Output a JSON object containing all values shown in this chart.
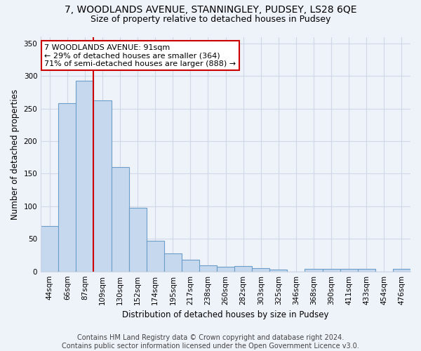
{
  "title": "7, WOODLANDS AVENUE, STANNINGLEY, PUDSEY, LS28 6QE",
  "subtitle": "Size of property relative to detached houses in Pudsey",
  "xlabel": "Distribution of detached houses by size in Pudsey",
  "ylabel": "Number of detached properties",
  "footer_line1": "Contains HM Land Registry data © Crown copyright and database right 2024.",
  "footer_line2": "Contains public sector information licensed under the Open Government Licence v3.0.",
  "annotation_line1": "7 WOODLANDS AVENUE: 91sqm",
  "annotation_line2": "← 29% of detached houses are smaller (364)",
  "annotation_line3": "71% of semi-detached houses are larger (888) →",
  "bar_color": "#c5d8ee",
  "bar_edge_color": "#6b9ec8",
  "categories": [
    "44sqm",
    "66sqm",
    "87sqm",
    "109sqm",
    "130sqm",
    "152sqm",
    "174sqm",
    "195sqm",
    "217sqm",
    "238sqm",
    "260sqm",
    "282sqm",
    "303sqm",
    "325sqm",
    "346sqm",
    "368sqm",
    "390sqm",
    "411sqm",
    "433sqm",
    "454sqm",
    "476sqm"
  ],
  "values": [
    70,
    258,
    293,
    263,
    160,
    98,
    47,
    28,
    18,
    9,
    7,
    8,
    5,
    3,
    0,
    4,
    4,
    4,
    4,
    0,
    4
  ],
  "red_line_after_index": 2,
  "ylim": [
    0,
    360
  ],
  "yticks": [
    0,
    50,
    100,
    150,
    200,
    250,
    300,
    350
  ],
  "background_color": "#eef2f9",
  "grid_color": "#d0d8e8",
  "annotation_box_color": "#ffffff",
  "annotation_box_edge": "#cc0000",
  "red_line_color": "#cc0000",
  "title_fontsize": 10,
  "subtitle_fontsize": 9,
  "axis_label_fontsize": 8.5,
  "tick_fontsize": 7.5,
  "annotation_fontsize": 8,
  "footer_fontsize": 7
}
